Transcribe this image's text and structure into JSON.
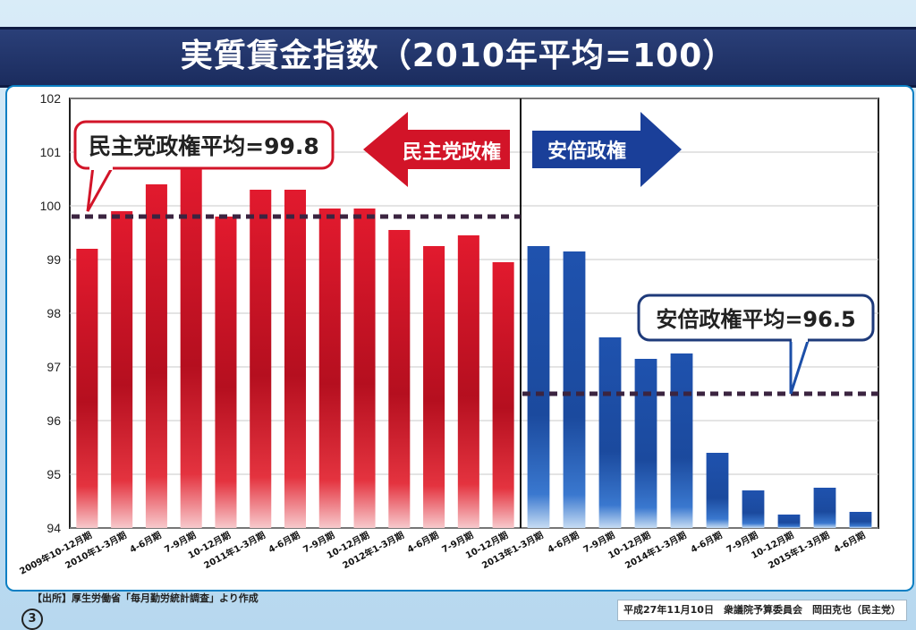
{
  "title": "実質賃金指数（2010年平均=100）",
  "source": "【出所】厚生労働省「毎月勤労統計調査」より作成",
  "footer": "平成27年11月10日　衆議院予算委員会　岡田克也（民主党）",
  "page_number": "3",
  "colors": {
    "dpj": "#d21428",
    "abe": "#1c4fa8",
    "avg_line": "#3b2440"
  },
  "chart_data": {
    "type": "bar",
    "title": "実質賃金指数（2010年平均=100）",
    "xlabel": "",
    "ylabel": "",
    "ylim": [
      94,
      102
    ],
    "yticks": [
      "94",
      "95",
      "96",
      "97",
      "98",
      "99",
      "100",
      "101",
      "102"
    ],
    "grid": true,
    "categories": [
      "2009年10-12月期",
      "2010年1-3月期",
      "4-6月期",
      "7-9月期",
      "10-12月期",
      "2011年1-3月期",
      "4-6月期",
      "7-9月期",
      "10-12月期",
      "2012年1-3月期",
      "4-6月期",
      "7-9月期",
      "10-12月期",
      "2013年1-3月期",
      "4-6月期",
      "7-9月期",
      "10-12月期",
      "2014年1-3月期",
      "4-6月期",
      "7-9月期",
      "10-12月期",
      "2015年1-3月期",
      "4-6月期"
    ],
    "values": [
      99.2,
      99.9,
      100.4,
      100.7,
      99.8,
      100.3,
      100.3,
      99.95,
      99.95,
      99.55,
      99.25,
      99.45,
      98.95,
      99.25,
      99.15,
      97.55,
      97.15,
      97.25,
      95.4,
      94.7,
      94.25,
      94.75,
      94.3
    ],
    "groups": [
      {
        "label": "民主党政権",
        "start": 0,
        "end": 12,
        "average": 99.8,
        "average_label": "民主党政権平均=99.8",
        "direction": "left"
      },
      {
        "label": "安倍政権",
        "start": 13,
        "end": 22,
        "average": 96.5,
        "average_label": "安倍政権平均=96.5",
        "direction": "right"
      }
    ]
  }
}
